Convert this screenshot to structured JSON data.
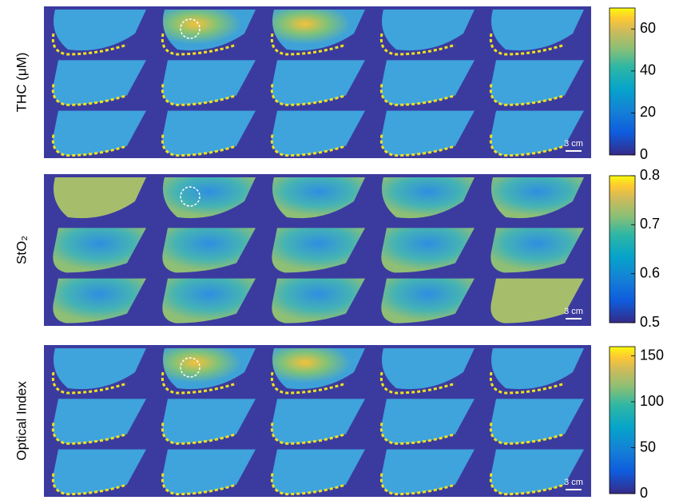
{
  "panels": [
    {
      "label": "THC (μM)",
      "colorbar": {
        "lim": [
          0,
          70
        ],
        "ticks": [
          0,
          20,
          40,
          60
        ]
      },
      "scale_label": "3 cm"
    },
    {
      "label": "StO₂",
      "colorbar": {
        "lim": [
          0.5,
          0.8
        ],
        "ticks": [
          0.5,
          0.6,
          0.7,
          0.8
        ]
      },
      "scale_label": "3 cm"
    },
    {
      "label": "Optical Index",
      "colorbar": {
        "lim": [
          0,
          160
        ],
        "ticks": [
          0,
          50,
          100,
          150
        ]
      },
      "scale_label": "3 cm"
    }
  ]
}
